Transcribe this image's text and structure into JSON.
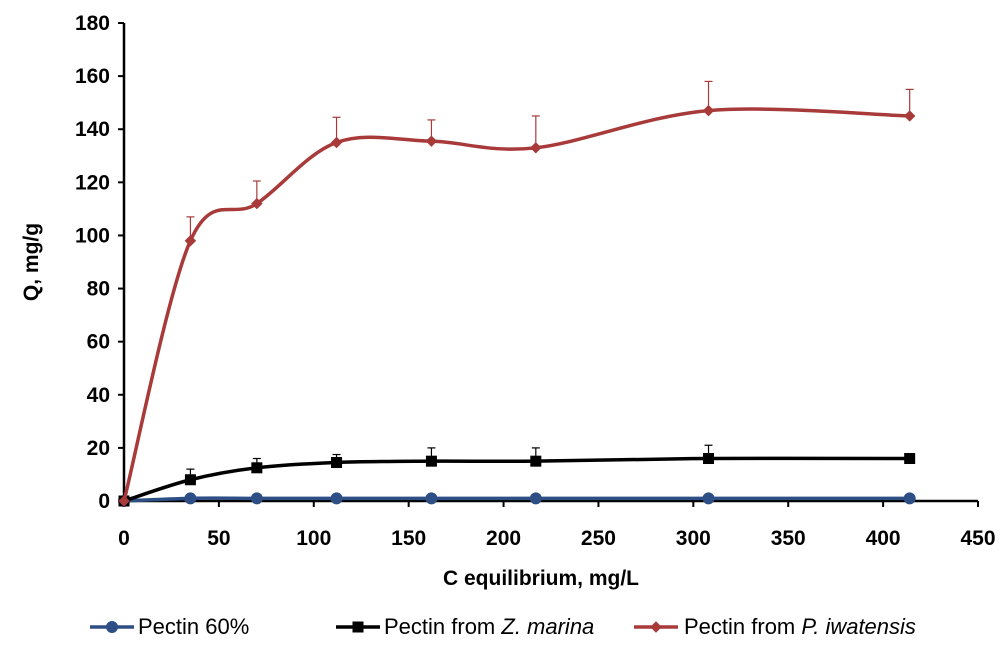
{
  "chart_data": {
    "type": "line",
    "title": "",
    "xlabel": "C equilibrium, mg/L",
    "ylabel": "Q, mg/g",
    "xlim": [
      0,
      450
    ],
    "ylim": [
      0,
      180
    ],
    "xticks": [
      0,
      50,
      100,
      150,
      200,
      250,
      300,
      350,
      400,
      450
    ],
    "yticks": [
      0,
      20,
      40,
      60,
      80,
      100,
      120,
      140,
      160,
      180
    ],
    "grid": false,
    "legend_position": "bottom",
    "series": [
      {
        "name": "Pectin 60%",
        "legend_parts": [
          "Pectin 60%"
        ],
        "color": "#2e4f86",
        "marker": "circle",
        "x": [
          0,
          35,
          70,
          112,
          162,
          217,
          308,
          414
        ],
        "y": [
          0,
          1,
          1,
          1,
          1,
          1,
          1,
          1
        ],
        "error": [
          0,
          0,
          0,
          0,
          0,
          0,
          0,
          0
        ]
      },
      {
        "name": "Pectin from Z. marina",
        "legend_parts": [
          "Pectin from ",
          "Z. marina"
        ],
        "color": "#000000",
        "marker": "square",
        "x": [
          0,
          35,
          70,
          112,
          162,
          217,
          308,
          414
        ],
        "y": [
          0,
          8,
          12.5,
          14.5,
          15,
          15,
          16,
          16
        ],
        "error": [
          0,
          4,
          3.5,
          3,
          5,
          5,
          5,
          0
        ]
      },
      {
        "name": "Pectin from P. iwatensis",
        "legend_parts": [
          "Pectin from ",
          "P. iwatensis"
        ],
        "color": "#a83a3a",
        "marker": "diamond",
        "x": [
          0,
          35,
          70,
          112,
          162,
          217,
          308,
          414
        ],
        "y": [
          0,
          98,
          112,
          135,
          135.5,
          133,
          147,
          145
        ],
        "error": [
          0,
          9,
          8.5,
          9.5,
          8,
          12,
          11,
          10
        ]
      }
    ]
  }
}
